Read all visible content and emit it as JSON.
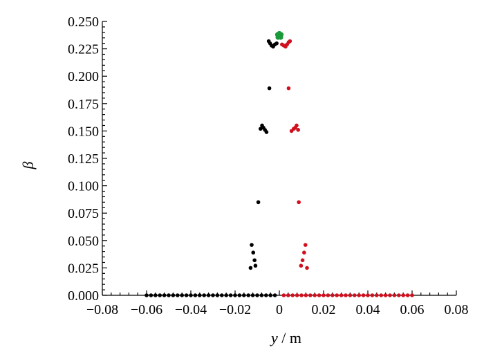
{
  "chart_data": {
    "type": "scatter",
    "xlabel_var": "y",
    "xlabel_unit": " / m",
    "ylabel": "β",
    "xlim": [
      -0.08,
      0.08
    ],
    "ylim": [
      0,
      0.25
    ],
    "x_ticks": [
      -0.08,
      -0.06,
      -0.04,
      -0.02,
      0,
      0.02,
      0.04,
      0.06,
      0.08
    ],
    "x_tick_labels": [
      "−0.08",
      "−0.06",
      "−0.04",
      "−0.02",
      "0",
      "0.02",
      "0.04",
      "0.06",
      "0.08"
    ],
    "y_ticks": [
      0,
      0.025,
      0.05,
      0.075,
      0.1,
      0.125,
      0.15,
      0.175,
      0.2,
      0.225,
      0.25
    ],
    "y_tick_labels": [
      "0.000",
      "0.025",
      "0.050",
      "0.075",
      "0.100",
      "0.125",
      "0.150",
      "0.175",
      "0.200",
      "0.225",
      "0.250"
    ],
    "grid": false,
    "legend": "none",
    "series": [
      {
        "color": "#000000",
        "marker": "circle",
        "points": [
          [
            -0.013,
            0.025
          ],
          [
            -0.0125,
            0.046
          ],
          [
            -0.0118,
            0.039
          ],
          [
            -0.0112,
            0.032
          ],
          [
            -0.0108,
            0.027
          ],
          [
            -0.0095,
            0.085
          ],
          [
            -0.0085,
            0.152
          ],
          [
            -0.0078,
            0.155
          ],
          [
            -0.0072,
            0.153
          ],
          [
            -0.0065,
            0.151
          ],
          [
            -0.0058,
            0.149
          ],
          [
            -0.0045,
            0.189
          ],
          [
            -0.0048,
            0.232
          ],
          [
            -0.0042,
            0.23
          ],
          [
            -0.0035,
            0.228
          ],
          [
            -0.0028,
            0.227
          ],
          [
            -0.002,
            0.229
          ],
          [
            -0.0012,
            0.23
          ],
          [
            -0.06,
            0
          ],
          [
            -0.058,
            0
          ],
          [
            -0.056,
            0
          ],
          [
            -0.054,
            0
          ],
          [
            -0.052,
            0
          ],
          [
            -0.05,
            0
          ],
          [
            -0.048,
            0
          ],
          [
            -0.046,
            0
          ],
          [
            -0.044,
            0
          ],
          [
            -0.042,
            0
          ],
          [
            -0.04,
            0
          ],
          [
            -0.038,
            0
          ],
          [
            -0.036,
            0
          ],
          [
            -0.034,
            0
          ],
          [
            -0.032,
            0
          ],
          [
            -0.03,
            0
          ],
          [
            -0.028,
            0
          ],
          [
            -0.026,
            0
          ],
          [
            -0.024,
            0
          ],
          [
            -0.022,
            0
          ],
          [
            -0.02,
            0
          ],
          [
            -0.018,
            0
          ],
          [
            -0.016,
            0
          ],
          [
            -0.014,
            0
          ],
          [
            -0.012,
            0
          ],
          [
            -0.01,
            0
          ],
          [
            -0.008,
            0
          ],
          [
            -0.006,
            0
          ],
          [
            -0.004,
            0
          ],
          [
            -0.002,
            0
          ]
        ]
      },
      {
        "color": "#d0101e",
        "marker": "circle",
        "points": [
          [
            0.0125,
            0.025
          ],
          [
            0.0118,
            0.046
          ],
          [
            0.0112,
            0.039
          ],
          [
            0.0105,
            0.032
          ],
          [
            0.0098,
            0.027
          ],
          [
            0.0088,
            0.085
          ],
          [
            0.0085,
            0.151
          ],
          [
            0.0078,
            0.155
          ],
          [
            0.0072,
            0.153
          ],
          [
            0.0065,
            0.152
          ],
          [
            0.0055,
            0.15
          ],
          [
            0.0042,
            0.189
          ],
          [
            0.0012,
            0.229
          ],
          [
            0.002,
            0.228
          ],
          [
            0.0028,
            0.227
          ],
          [
            0.0035,
            0.229
          ],
          [
            0.0042,
            0.231
          ],
          [
            0.0048,
            0.232
          ],
          [
            0.002,
            0
          ],
          [
            0.004,
            0
          ],
          [
            0.006,
            0
          ],
          [
            0.008,
            0
          ],
          [
            0.01,
            0
          ],
          [
            0.012,
            0
          ],
          [
            0.014,
            0
          ],
          [
            0.016,
            0
          ],
          [
            0.018,
            0
          ],
          [
            0.02,
            0
          ],
          [
            0.022,
            0
          ],
          [
            0.024,
            0
          ],
          [
            0.026,
            0
          ],
          [
            0.028,
            0
          ],
          [
            0.03,
            0
          ],
          [
            0.032,
            0
          ],
          [
            0.034,
            0
          ],
          [
            0.036,
            0
          ],
          [
            0.038,
            0
          ],
          [
            0.04,
            0
          ],
          [
            0.042,
            0
          ],
          [
            0.044,
            0
          ],
          [
            0.046,
            0
          ],
          [
            0.048,
            0
          ],
          [
            0.05,
            0
          ],
          [
            0.052,
            0
          ],
          [
            0.054,
            0
          ],
          [
            0.056,
            0
          ],
          [
            0.058,
            0
          ],
          [
            0.06,
            0
          ]
        ]
      },
      {
        "color": "#1a9a3a",
        "marker": "circle",
        "points": [
          [
            -0.0008,
            0.238
          ],
          [
            0.0,
            0.239
          ],
          [
            0.0008,
            0.238
          ],
          [
            -0.0006,
            0.2355
          ],
          [
            0.0006,
            0.2355
          ],
          [
            0.0,
            0.2365
          ]
        ]
      }
    ]
  }
}
